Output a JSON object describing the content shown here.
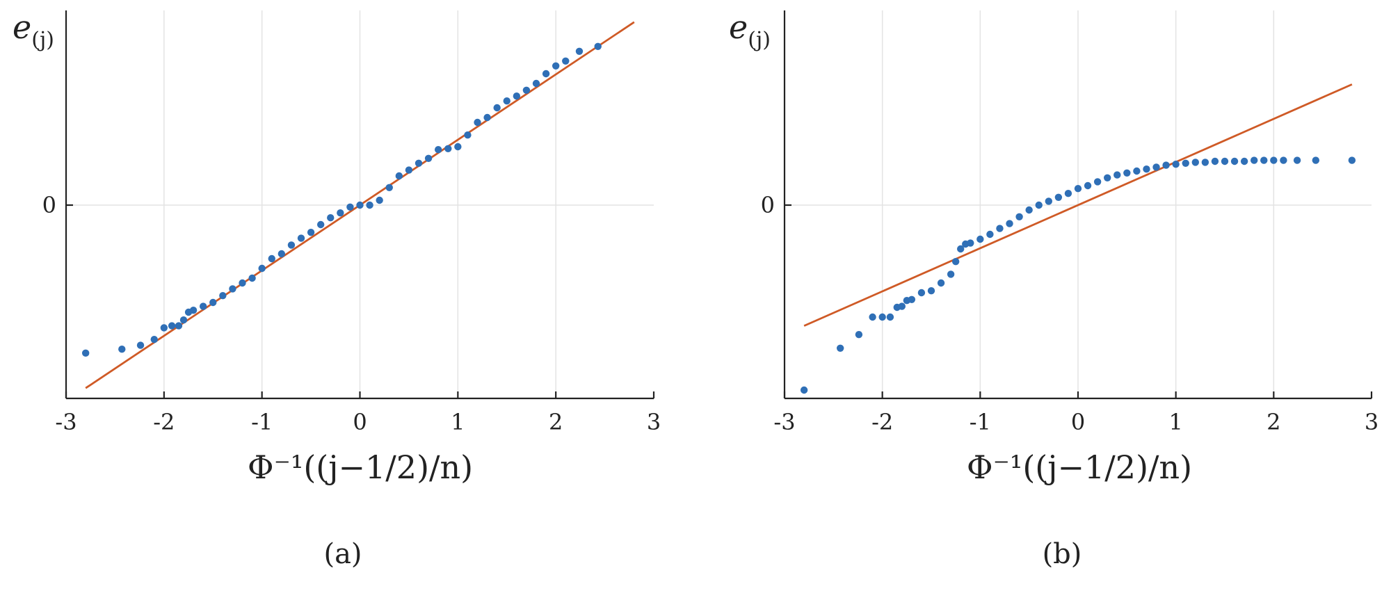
{
  "chart_data": [
    {
      "type": "scatter",
      "panel_label": "(a)",
      "xlabel": "Φ⁻¹((j−1/2)/n)",
      "ylabel": "e(j)",
      "xlim": [
        -3,
        3
      ],
      "x_ticks": [
        "-3",
        "-2",
        "-1",
        "0",
        "1",
        "2",
        "3"
      ],
      "y_ticks": [
        "0"
      ],
      "grid": true,
      "series": [
        {
          "kind": "points",
          "x": [
            -2.8,
            -2.43,
            -2.24,
            -2.1,
            -2.0,
            -1.92,
            -1.85,
            -1.8,
            -1.75,
            -1.7,
            -1.6,
            -1.5,
            -1.4,
            -1.3,
            -1.2,
            -1.1,
            -1.0,
            -0.9,
            -0.8,
            -0.7,
            -0.6,
            -0.5,
            -0.4,
            -0.3,
            -0.2,
            -0.1,
            0.0,
            0.1,
            0.2,
            0.3,
            0.4,
            0.5,
            0.6,
            0.7,
            0.8,
            0.9,
            1.0,
            1.1,
            1.2,
            1.3,
            1.4,
            1.5,
            1.6,
            1.7,
            1.8,
            1.9,
            2.0,
            2.1,
            2.24,
            2.43
          ],
          "y": [
            -1.52,
            -1.48,
            -1.44,
            -1.38,
            -1.26,
            -1.24,
            -1.24,
            -1.18,
            -1.1,
            -1.08,
            -1.04,
            -1.0,
            -0.93,
            -0.86,
            -0.8,
            -0.75,
            -0.65,
            -0.55,
            -0.5,
            -0.41,
            -0.34,
            -0.28,
            -0.2,
            -0.13,
            -0.08,
            -0.02,
            0.0,
            0.0,
            0.05,
            0.18,
            0.3,
            0.36,
            0.43,
            0.48,
            0.57,
            0.58,
            0.6,
            0.72,
            0.85,
            0.9,
            1.0,
            1.07,
            1.12,
            1.18,
            1.25,
            1.35,
            1.43,
            1.48,
            1.58,
            1.63
          ]
        },
        {
          "kind": "line",
          "x": [
            -2.8,
            2.8
          ],
          "y": [
            -1.88,
            1.88
          ]
        }
      ]
    },
    {
      "type": "scatter",
      "panel_label": "(b)",
      "xlabel": "Φ⁻¹((j−1/2)/n)",
      "ylabel": "e(j)",
      "xlim": [
        -3,
        3
      ],
      "x_ticks": [
        "-3",
        "-2",
        "-1",
        "0",
        "1",
        "2",
        "3"
      ],
      "y_ticks": [
        "0"
      ],
      "grid": true,
      "series": [
        {
          "kind": "points",
          "x": [
            -2.8,
            -2.43,
            -2.24,
            -2.1,
            -2.0,
            -1.92,
            -1.85,
            -1.8,
            -1.75,
            -1.7,
            -1.6,
            -1.5,
            -1.4,
            -1.3,
            -1.25,
            -1.2,
            -1.15,
            -1.1,
            -1.0,
            -0.9,
            -0.8,
            -0.7,
            -0.6,
            -0.5,
            -0.4,
            -0.3,
            -0.2,
            -0.1,
            0.0,
            0.1,
            0.2,
            0.3,
            0.4,
            0.5,
            0.6,
            0.7,
            0.8,
            0.9,
            1.0,
            1.1,
            1.2,
            1.3,
            1.4,
            1.5,
            1.6,
            1.7,
            1.8,
            1.9,
            2.0,
            2.1,
            2.24,
            2.43,
            2.8
          ],
          "y": [
            -1.9,
            -1.47,
            -1.33,
            -1.15,
            -1.15,
            -1.15,
            -1.05,
            -1.04,
            -0.98,
            -0.97,
            -0.9,
            -0.88,
            -0.8,
            -0.71,
            -0.58,
            -0.45,
            -0.4,
            -0.39,
            -0.35,
            -0.3,
            -0.24,
            -0.19,
            -0.12,
            -0.05,
            0.0,
            0.04,
            0.08,
            0.12,
            0.17,
            0.2,
            0.24,
            0.28,
            0.31,
            0.33,
            0.35,
            0.37,
            0.39,
            0.41,
            0.42,
            0.43,
            0.44,
            0.44,
            0.45,
            0.45,
            0.45,
            0.45,
            0.46,
            0.46,
            0.46,
            0.46,
            0.46,
            0.46,
            0.46
          ]
        },
        {
          "kind": "line",
          "x": [
            -2.8,
            2.8
          ],
          "y": [
            -1.24,
            1.24
          ]
        }
      ]
    }
  ]
}
